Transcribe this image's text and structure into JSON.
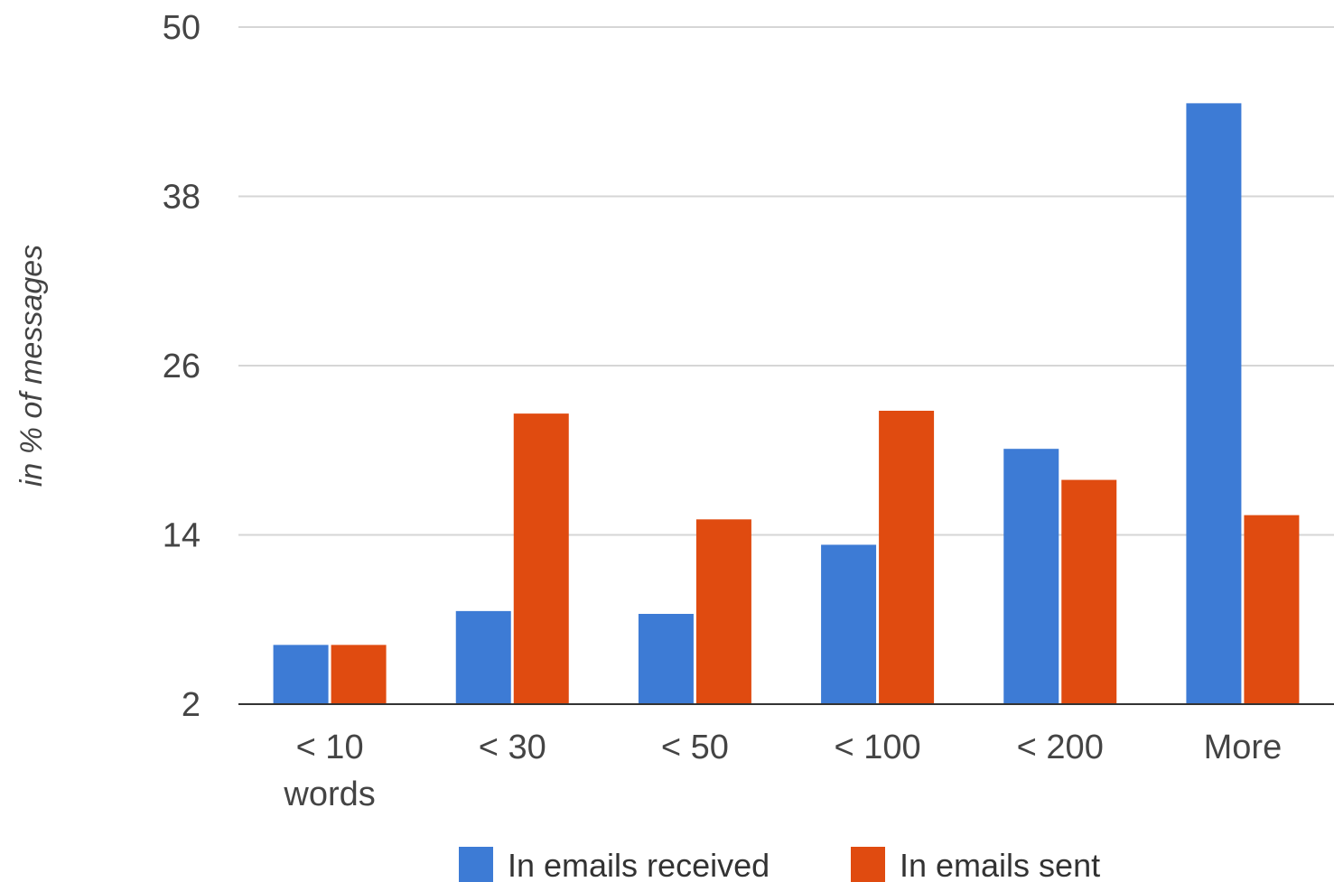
{
  "chart_data": {
    "type": "bar",
    "categories": [
      [
        "< 10",
        "words"
      ],
      [
        "< 30"
      ],
      [
        "< 50"
      ],
      [
        "< 100"
      ],
      [
        "< 200"
      ],
      [
        "More"
      ]
    ],
    "series": [
      {
        "name": "In emails received",
        "color": "#3d7bd5",
        "values": [
          6.2,
          8.6,
          8.4,
          13.3,
          20.1,
          44.6
        ]
      },
      {
        "name": "In emails sent",
        "color": "#e04b10",
        "values": [
          6.2,
          22.6,
          15.1,
          22.8,
          17.9,
          15.4
        ]
      }
    ],
    "yticks": [
      2,
      14,
      26,
      38,
      50
    ],
    "ylim": [
      2,
      50
    ],
    "ylabel": "in % of messages",
    "xlabel": "",
    "title": "",
    "grid": true,
    "legend_position": "bottom"
  }
}
